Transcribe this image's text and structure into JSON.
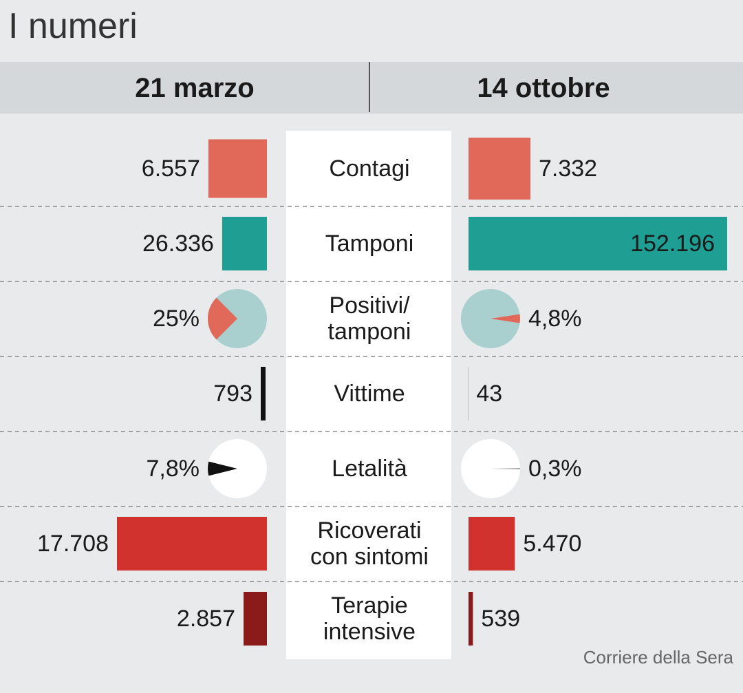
{
  "chart_data": {
    "type": "comparison",
    "title": "I numeri",
    "columns": [
      "21 marzo",
      "14 ottobre"
    ],
    "rows": [
      {
        "label": "Contagi",
        "kind": "square",
        "color": "#e0695a",
        "values": [
          6557,
          7332
        ],
        "value_labels": [
          "6.557",
          "7.332"
        ]
      },
      {
        "label": "Tamponi",
        "kind": "bar",
        "color": "#1f9e93",
        "values": [
          26336,
          152196
        ],
        "value_labels": [
          "26.336",
          "152.196"
        ]
      },
      {
        "label": "Positivi/\ntamponi",
        "kind": "pie",
        "color": "#e0695a",
        "background": "#a9cfcf",
        "values": [
          25,
          4.8
        ],
        "value_labels": [
          "25%",
          "4,8%"
        ]
      },
      {
        "label": "Vittime",
        "kind": "line",
        "color": "#111111",
        "values": [
          793,
          43
        ],
        "value_labels": [
          "793",
          "43"
        ]
      },
      {
        "label": "Letalità",
        "kind": "pie",
        "color": "#111111",
        "background": "#ffffff",
        "values": [
          7.8,
          0.3
        ],
        "value_labels": [
          "7,8%",
          "0,3%"
        ]
      },
      {
        "label": "Ricoverati\ncon sintomi",
        "kind": "bar",
        "color": "#d2322d",
        "values": [
          17708,
          5470
        ],
        "value_labels": [
          "17.708",
          "5.470"
        ]
      },
      {
        "label": "Terapie\nintensive",
        "kind": "bar",
        "color": "#8b1a1a",
        "values": [
          2857,
          539
        ],
        "value_labels": [
          "2.857",
          "539"
        ]
      }
    ],
    "source": "Corriere della Sera"
  }
}
